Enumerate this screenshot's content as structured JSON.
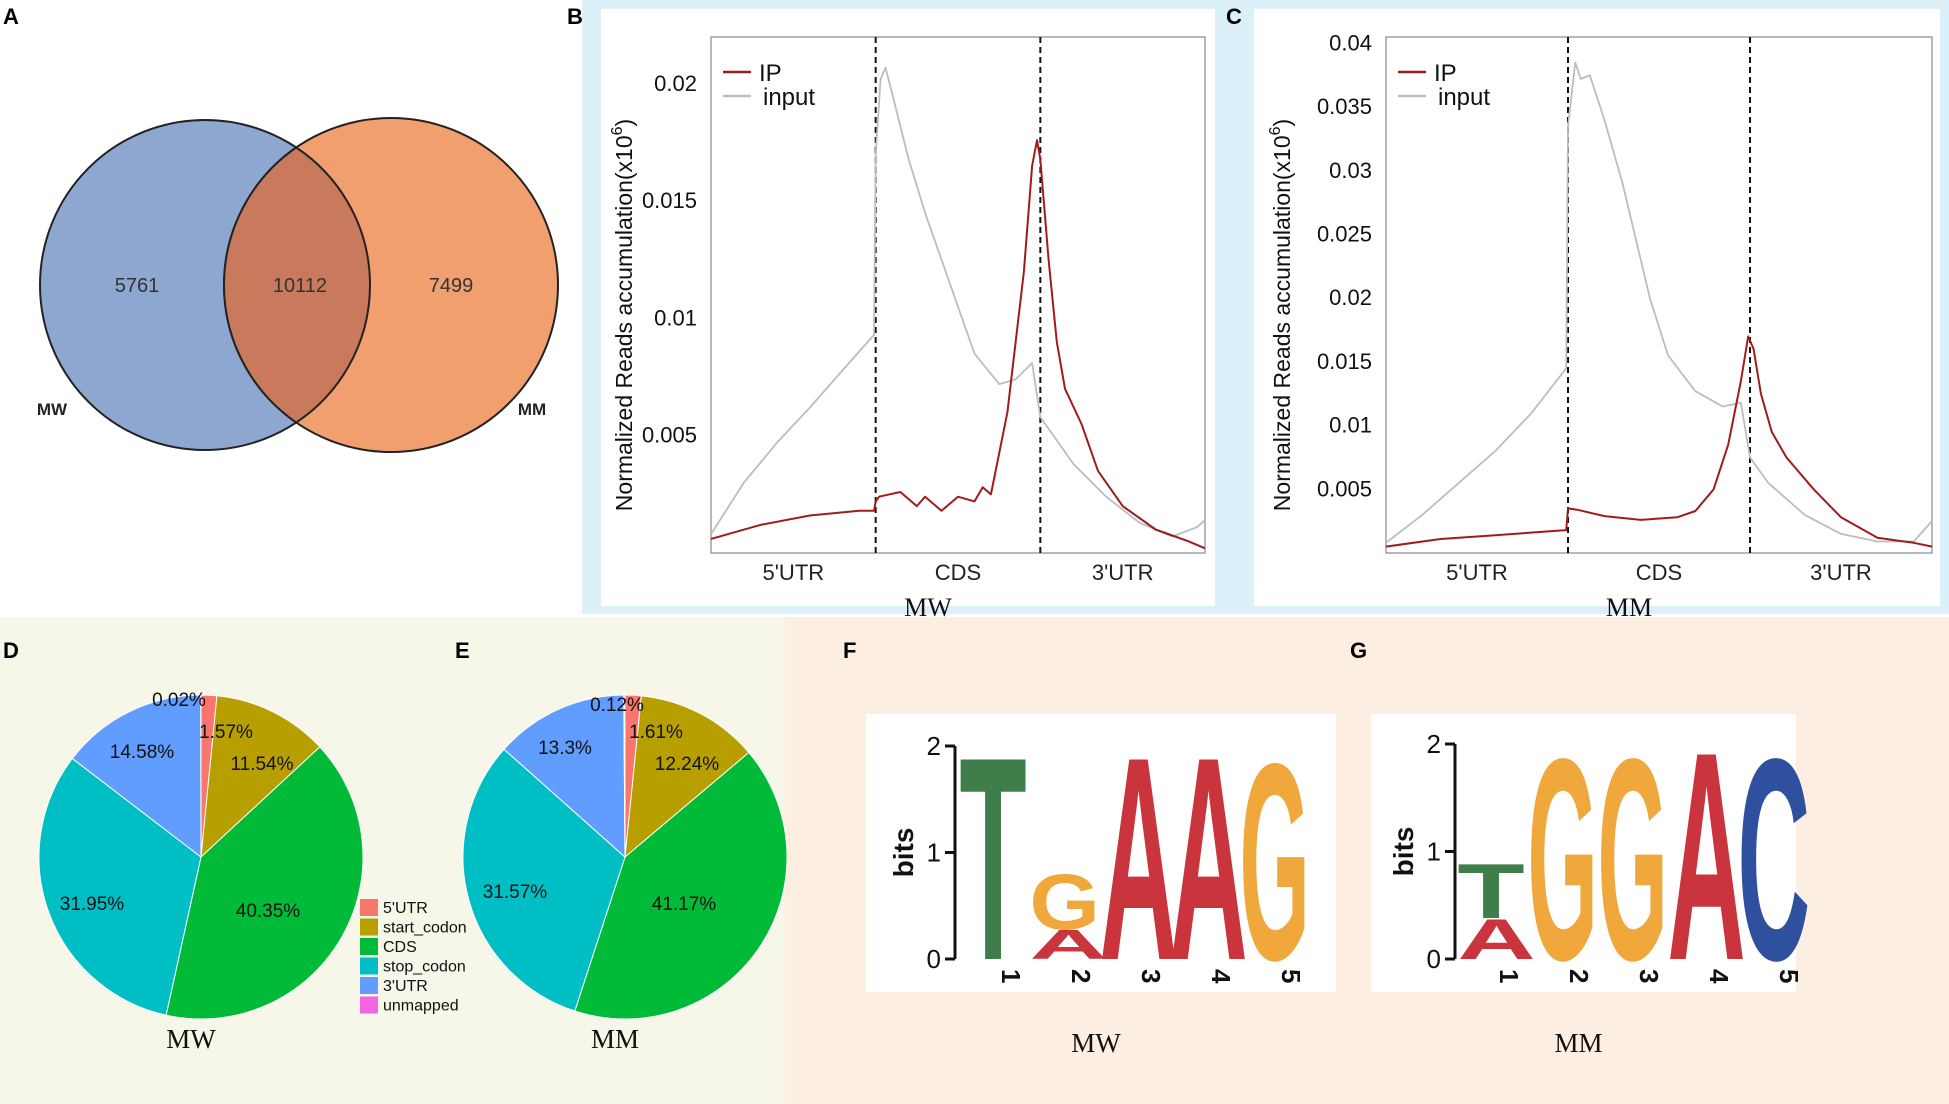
{
  "panel_labels": {
    "A": "A",
    "B": "B",
    "C": "C",
    "D": "D",
    "E": "E",
    "F": "F",
    "G": "G"
  },
  "colors": {
    "venn_mw": "#8ea7d1",
    "venn_mm": "#f29f6f",
    "venn_overlap": "#c97a5d",
    "ip": "#a01c1c",
    "input": "#bdbdbd",
    "bg_bc": "#dcf0fa",
    "bg_de": "#f6f7e9",
    "bg_fg": "#fcefe1",
    "pie": [
      "#f8766d",
      "#b79f00",
      "#00ba38",
      "#00bfc4",
      "#619cff",
      "#f564e3"
    ],
    "logo": {
      "A": "#c9343d",
      "C": "#2f4f9f",
      "G": "#f0a73b",
      "T": "#3f7d4a"
    }
  },
  "chart_data": [
    {
      "id": "A",
      "type": "venn",
      "sets": [
        {
          "name": "MW",
          "only": 5761
        },
        {
          "name": "MM",
          "only": 7499
        }
      ],
      "intersection": 10112,
      "labels": {
        "mw_only": "5761",
        "overlap": "10112",
        "mm_only": "7499",
        "mw": "MW",
        "mm": "MM"
      }
    },
    {
      "id": "B",
      "type": "line",
      "title": "MW",
      "ylabel": "Normalized Reads accumulation(x10",
      "ylabel_sup": "6",
      "ylim": [
        0,
        0.022
      ],
      "yticks": [
        0.005,
        0.01,
        0.015,
        0.02
      ],
      "ytick_labels": [
        "0.005",
        "0.01",
        "0.015",
        "0.02"
      ],
      "xlim": [
        0,
        3
      ],
      "dividers": [
        1,
        2
      ],
      "region_labels": [
        "5'UTR",
        "CDS",
        "3'UTR"
      ],
      "legend": [
        "IP",
        "input"
      ],
      "series": [
        {
          "name": "IP",
          "x": [
            0,
            0.3,
            0.6,
            0.9,
            0.99,
            1.0,
            1.02,
            1.15,
            1.25,
            1.3,
            1.4,
            1.5,
            1.6,
            1.65,
            1.7,
            1.8,
            1.9,
            1.95,
            1.98,
            2.0,
            2.05,
            2.1,
            2.15,
            2.25,
            2.35,
            2.5,
            2.7,
            2.9,
            3.0
          ],
          "y": [
            0.0006,
            0.0012,
            0.0016,
            0.0018,
            0.0018,
            0.0022,
            0.0024,
            0.0026,
            0.002,
            0.0024,
            0.0018,
            0.0024,
            0.0022,
            0.0028,
            0.0025,
            0.006,
            0.012,
            0.0165,
            0.0176,
            0.0168,
            0.0125,
            0.009,
            0.007,
            0.0055,
            0.0035,
            0.002,
            0.001,
            0.0005,
            0.0002
          ]
        },
        {
          "name": "input",
          "x": [
            0,
            0.2,
            0.4,
            0.6,
            0.8,
            0.99,
            1.0,
            1.03,
            1.06,
            1.1,
            1.2,
            1.3,
            1.45,
            1.6,
            1.75,
            1.85,
            1.95,
            2.0,
            2.1,
            2.2,
            2.4,
            2.6,
            2.8,
            2.95,
            3.0
          ],
          "y": [
            0.0008,
            0.003,
            0.0047,
            0.0062,
            0.0078,
            0.0093,
            0.017,
            0.0202,
            0.0207,
            0.0196,
            0.0168,
            0.0145,
            0.0115,
            0.0085,
            0.0072,
            0.0074,
            0.0081,
            0.0058,
            0.0048,
            0.0038,
            0.0024,
            0.0013,
            0.0007,
            0.0011,
            0.0014
          ]
        }
      ]
    },
    {
      "id": "C",
      "type": "line",
      "title": "MM",
      "ylabel": "Normalized Reads accumulation(x10",
      "ylabel_sup": "6",
      "ylim": [
        0,
        0.0405
      ],
      "yticks": [
        0.005,
        0.01,
        0.015,
        0.02,
        0.025,
        0.03,
        0.035,
        0.04
      ],
      "ytick_labels": [
        "0.005",
        "0.01",
        "0.015",
        "0.02",
        "0.025",
        "0.03",
        "0.035",
        "0.04"
      ],
      "xlim": [
        0,
        3
      ],
      "dividers": [
        1,
        2
      ],
      "region_labels": [
        "5'UTR",
        "CDS",
        "3'UTR"
      ],
      "legend": [
        "IP",
        "input"
      ],
      "series": [
        {
          "name": "IP",
          "x": [
            0,
            0.3,
            0.6,
            0.9,
            0.99,
            1.0,
            1.05,
            1.2,
            1.4,
            1.6,
            1.7,
            1.8,
            1.88,
            1.95,
            1.99,
            2.02,
            2.06,
            2.12,
            2.2,
            2.35,
            2.5,
            2.7,
            2.9,
            3.0
          ],
          "y": [
            0.0005,
            0.0011,
            0.0014,
            0.0017,
            0.0018,
            0.0035,
            0.0034,
            0.0029,
            0.0026,
            0.0028,
            0.0033,
            0.005,
            0.0085,
            0.0135,
            0.017,
            0.016,
            0.0125,
            0.0095,
            0.0075,
            0.005,
            0.0028,
            0.0012,
            0.0008,
            0.0005
          ]
        },
        {
          "name": "input",
          "x": [
            0,
            0.2,
            0.4,
            0.6,
            0.8,
            0.99,
            1.0,
            1.04,
            1.07,
            1.12,
            1.2,
            1.3,
            1.45,
            1.55,
            1.7,
            1.85,
            1.95,
            2.0,
            2.1,
            2.3,
            2.5,
            2.7,
            2.9,
            3.0
          ],
          "y": [
            0.0008,
            0.003,
            0.0055,
            0.008,
            0.011,
            0.0145,
            0.0335,
            0.0385,
            0.0372,
            0.0375,
            0.034,
            0.029,
            0.02,
            0.0155,
            0.0127,
            0.0115,
            0.0118,
            0.0075,
            0.0055,
            0.003,
            0.0015,
            0.0009,
            0.0009,
            0.0025
          ]
        }
      ]
    },
    {
      "id": "D",
      "type": "pie",
      "title": "MW",
      "categories": [
        "5'UTR",
        "start_codon",
        "CDS",
        "stop_codon",
        "3'UTR",
        "unmapped"
      ],
      "values": [
        1.57,
        11.54,
        40.35,
        31.95,
        14.58,
        0.02
      ],
      "value_labels": [
        "1.57%",
        "11.54%",
        "40.35%",
        "31.95%",
        "14.58%",
        "0.02%"
      ],
      "legend": [
        "5'UTR",
        "start_codon",
        "CDS",
        "stop_codon",
        "3'UTR",
        "unmapped"
      ]
    },
    {
      "id": "E",
      "type": "pie",
      "title": "MM",
      "categories": [
        "5'UTR",
        "start_codon",
        "CDS",
        "stop_codon",
        "3'UTR",
        "unmapped"
      ],
      "values": [
        1.61,
        12.24,
        41.17,
        31.57,
        13.3,
        0.12
      ],
      "value_labels": [
        "1.61%",
        "12.24%",
        "41.17%",
        "31.57%",
        "13.3%",
        "0.12%"
      ]
    },
    {
      "id": "F",
      "type": "sequence-logo",
      "title": "MW",
      "ylabel": "bits",
      "yticks": [
        "0",
        "1",
        "2"
      ],
      "ylim": [
        0,
        2
      ],
      "positions": [
        "1",
        "2",
        "3",
        "4",
        "5"
      ],
      "columns": [
        [
          {
            "letter": "T",
            "bits": 1.95
          }
        ],
        [
          {
            "letter": "A",
            "bits": 0.28
          },
          {
            "letter": "G",
            "bits": 0.55
          }
        ],
        [
          {
            "letter": "A",
            "bits": 1.95
          }
        ],
        [
          {
            "letter": "A",
            "bits": 1.95
          }
        ],
        [
          {
            "letter": "G",
            "bits": 1.95
          }
        ]
      ]
    },
    {
      "id": "G",
      "type": "sequence-logo",
      "title": "MM",
      "ylabel": "bits",
      "yticks": [
        "0",
        "1",
        "2"
      ],
      "ylim": [
        0,
        2
      ],
      "positions": [
        "1",
        "2",
        "3",
        "4",
        "5"
      ],
      "columns": [
        [
          {
            "letter": "A",
            "bits": 0.38
          },
          {
            "letter": "T",
            "bits": 0.52
          }
        ],
        [
          {
            "letter": "G",
            "bits": 1.98
          }
        ],
        [
          {
            "letter": "G",
            "bits": 1.98
          }
        ],
        [
          {
            "letter": "A",
            "bits": 1.98
          }
        ],
        [
          {
            "letter": "C",
            "bits": 1.98
          }
        ]
      ]
    }
  ]
}
